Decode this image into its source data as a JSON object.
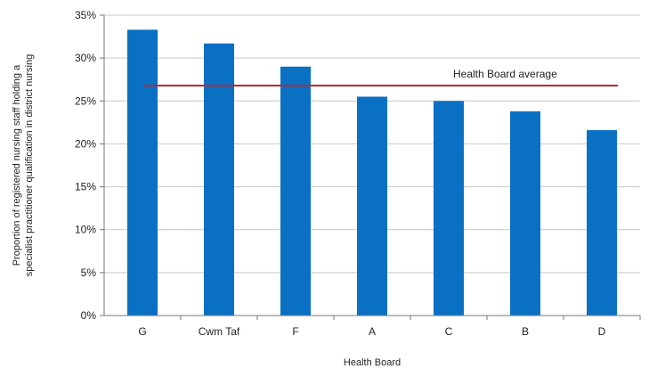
{
  "chart_data": {
    "type": "bar",
    "title": "",
    "xlabel": "Health Board",
    "ylabel_lines": [
      "Proportion of registered nursing staff holding a",
      "specialist practitioner qualification in district nursing"
    ],
    "categories": [
      "G",
      "Cwm Taf",
      "F",
      "A",
      "C",
      "B",
      "D"
    ],
    "values": [
      33.3,
      31.7,
      29.0,
      25.5,
      25.0,
      23.8,
      21.6
    ],
    "ylim": [
      0,
      35
    ],
    "yticks": [
      0,
      5,
      10,
      15,
      20,
      25,
      30,
      35
    ],
    "ytick_format": "%",
    "grid": true,
    "bar_color": "#0a70c4",
    "reference_line": {
      "label": "Health Board average",
      "value": 26.8,
      "color": "#c0262d"
    }
  }
}
